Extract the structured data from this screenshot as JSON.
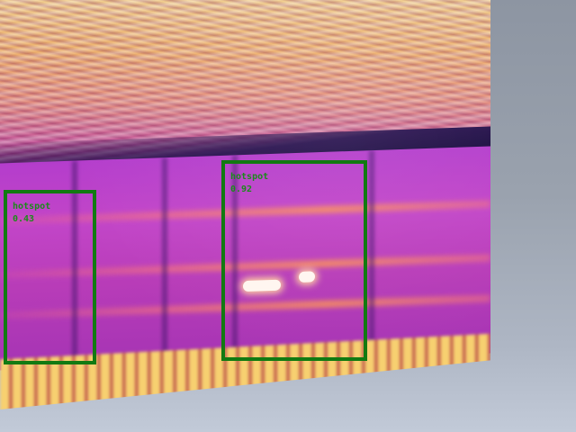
{
  "detections": [
    {
      "label": "hotspot",
      "score": "0.43"
    },
    {
      "label": "hotspot",
      "score": "0.92"
    }
  ],
  "colors": {
    "box_stroke": "#127a12",
    "label_text": "#1b8a1b"
  }
}
